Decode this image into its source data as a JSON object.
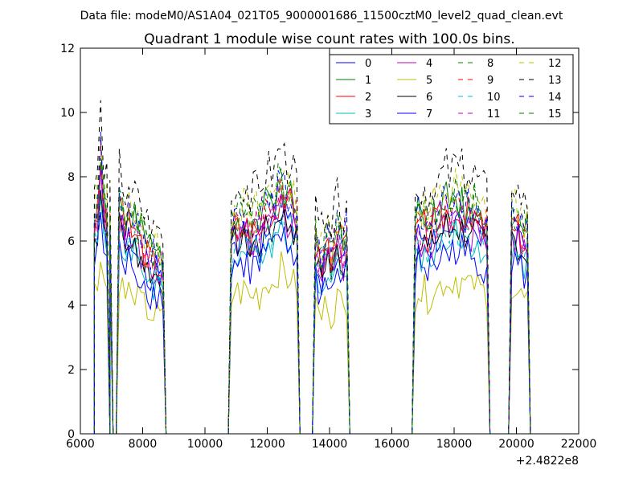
{
  "suptitle": "Data file: modeM0/AS1A04_021T05_9000001686_11500cztM0_level2_quad_clean.evt",
  "chart_data": {
    "type": "line",
    "title": "Quadrant 1 module wise count rates with 100.0s bins.",
    "xlabel": "",
    "ylabel": "",
    "xlim": [
      6000,
      22000
    ],
    "ylim": [
      0,
      12
    ],
    "x_offset_label": "+2.4822e8",
    "xticks": [
      6000,
      8000,
      10000,
      12000,
      14000,
      16000,
      18000,
      20000,
      22000
    ],
    "xtick_labels": [
      "6000",
      "8000",
      "10000",
      "12000",
      "14000",
      "16000",
      "18000",
      "20000",
      "22000"
    ],
    "yticks": [
      0,
      2,
      4,
      6,
      8,
      10,
      12
    ],
    "ytick_labels": [
      "0",
      "2",
      "4",
      "6",
      "8",
      "10",
      "12"
    ],
    "legend_position": "top-right",
    "legend_columns": 4,
    "segments": [
      {
        "start": 6450,
        "end": 6950,
        "profile": [
          0.86,
          0.89,
          1.0,
          0.93,
          0.88,
          0.84
        ],
        "anomaly": {
          "index": 2,
          "factor": 1.12
        }
      },
      {
        "start": 7250,
        "end": 8650,
        "profile": [
          0.93,
          0.88,
          0.82,
          0.87,
          0.78,
          0.85,
          0.8,
          0.79,
          0.76,
          0.74,
          0.72,
          0.7,
          0.71,
          0.7,
          0.68
        ]
      },
      {
        "start": 10850,
        "end": 12950,
        "profile": [
          0.79,
          0.86,
          0.85,
          0.84,
          0.86,
          0.86,
          0.8,
          0.84,
          0.85,
          0.82,
          0.88,
          0.9,
          0.92,
          0.89,
          0.93,
          0.97,
          1.0,
          0.96,
          0.92,
          0.95,
          0.9,
          0.87
        ]
      },
      {
        "start": 13550,
        "end": 14550,
        "profile": [
          0.78,
          0.72,
          0.7,
          0.76,
          0.8,
          0.7,
          0.76,
          0.82,
          0.78,
          0.74,
          0.8
        ]
      },
      {
        "start": 16750,
        "end": 19050,
        "profile": [
          0.82,
          0.87,
          0.83,
          0.86,
          0.81,
          0.84,
          0.87,
          0.86,
          0.89,
          0.9,
          0.93,
          0.88,
          0.92,
          0.94,
          0.9,
          0.92,
          0.88,
          0.91,
          0.86,
          0.9,
          0.88,
          0.86,
          0.85,
          0.84
        ]
      },
      {
        "start": 19850,
        "end": 20350,
        "profile": [
          0.88,
          0.86,
          0.84,
          0.82,
          0.8,
          0.8
        ]
      }
    ],
    "gap_points": [
      6250,
      6350,
      6450,
      6950,
      7050,
      7150,
      8750,
      9250,
      9750,
      10250,
      10750,
      13050,
      13150,
      13450,
      14650,
      14750,
      15250,
      15750,
      16250,
      16650,
      19150,
      19250,
      19550,
      19750,
      20450
    ],
    "series": [
      {
        "name": "0",
        "color": "#0000ff",
        "dash": "solid",
        "mean": 7.0,
        "noise": 0.6,
        "seed": 1
      },
      {
        "name": "1",
        "color": "#008000",
        "dash": "solid",
        "mean": 7.9,
        "noise": 0.6,
        "seed": 2
      },
      {
        "name": "2",
        "color": "#ff0000",
        "dash": "solid",
        "mean": 7.5,
        "noise": 0.6,
        "seed": 3
      },
      {
        "name": "3",
        "color": "#00bfbf",
        "dash": "solid",
        "mean": 6.6,
        "noise": 0.5,
        "seed": 4
      },
      {
        "name": "4",
        "color": "#bf00bf",
        "dash": "solid",
        "mean": 7.1,
        "noise": 0.6,
        "seed": 5
      },
      {
        "name": "5",
        "color": "#bfbf00",
        "dash": "solid",
        "mean": 5.2,
        "noise": 0.5,
        "seed": 6
      },
      {
        "name": "6",
        "color": "#000000",
        "dash": "solid",
        "mean": 7.0,
        "noise": 0.5,
        "seed": 7
      },
      {
        "name": "7",
        "color": "#0000ff",
        "dash": "solid",
        "mean": 6.2,
        "noise": 0.6,
        "seed": 8
      },
      {
        "name": "8",
        "color": "#008000",
        "dash": "dashed",
        "mean": 8.1,
        "noise": 0.6,
        "seed": 9
      },
      {
        "name": "9",
        "color": "#ff0000",
        "dash": "dashed",
        "mean": 7.7,
        "noise": 0.6,
        "seed": 10
      },
      {
        "name": "10",
        "color": "#00bfbf",
        "dash": "dashed",
        "mean": 6.9,
        "noise": 0.5,
        "seed": 11
      },
      {
        "name": "11",
        "color": "#bf00bf",
        "dash": "dashed",
        "mean": 7.6,
        "noise": 0.6,
        "seed": 12
      },
      {
        "name": "12",
        "color": "#bfbf00",
        "dash": "dashed",
        "mean": 8.3,
        "noise": 0.6,
        "seed": 13
      },
      {
        "name": "13",
        "color": "#000000",
        "dash": "dashed",
        "mean": 9.0,
        "noise": 0.6,
        "seed": 14
      },
      {
        "name": "14",
        "color": "#0000ff",
        "dash": "dashed",
        "mean": 7.9,
        "noise": 0.6,
        "seed": 15
      },
      {
        "name": "15",
        "color": "#008000",
        "dash": "dashed",
        "mean": 8.0,
        "noise": 0.6,
        "seed": 16
      }
    ]
  }
}
